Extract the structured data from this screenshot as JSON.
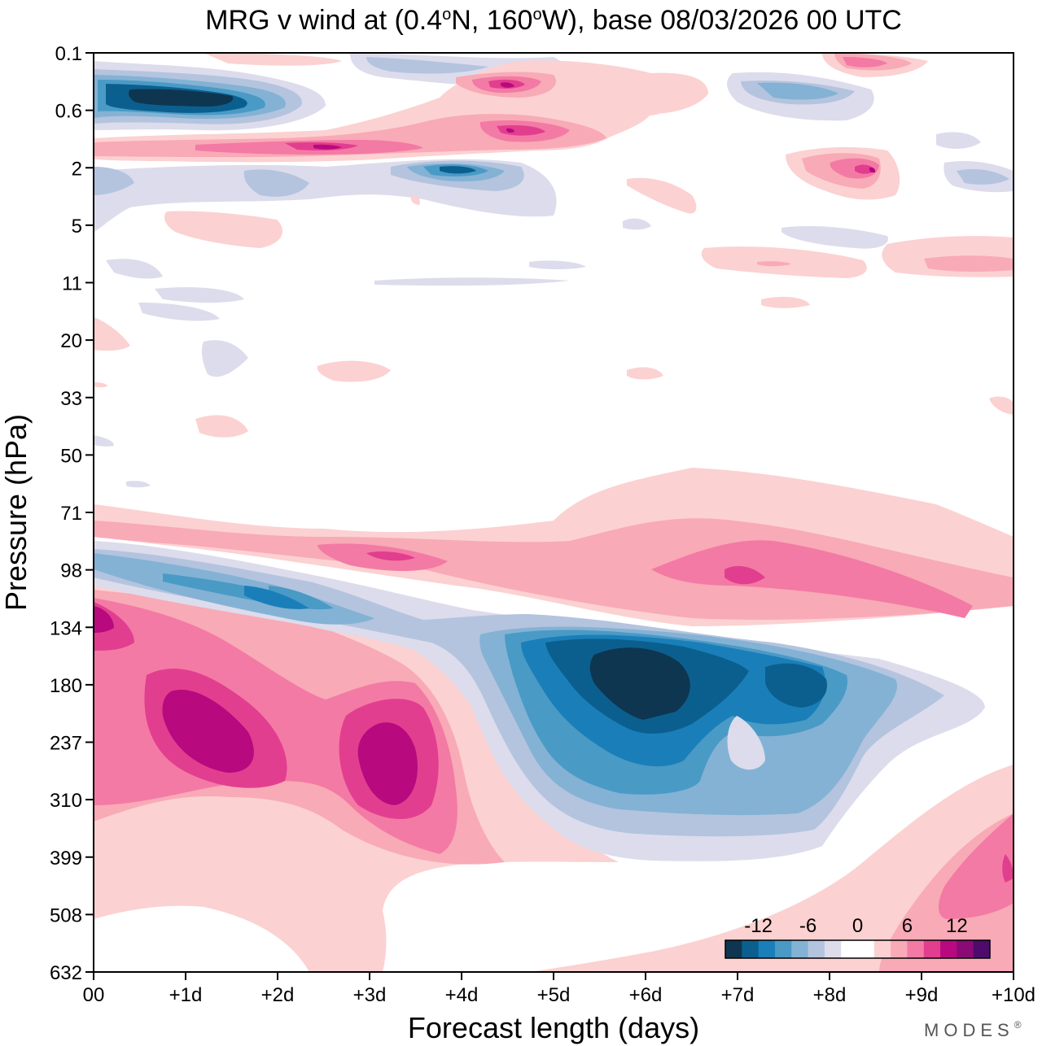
{
  "chart_data": {
    "type": "heatmap",
    "title": "MRG v wind at (0.4°N, 160°W),  base 08/03/2026  00 UTC",
    "title_parts": {
      "prefix": "MRG v wind at (0.4",
      "deg1": "o",
      "lat_suffix": "N, 160",
      "deg2": "o",
      "suffix": "W),  base 08/03/2026  00 UTC"
    },
    "xlabel": "Forecast length (days)",
    "ylabel": "Pressure (hPa)",
    "x_ticks": [
      "00",
      "+1d",
      "+2d",
      "+3d",
      "+4d",
      "+5d",
      "+6d",
      "+7d",
      "+8d",
      "+9d",
      "+10d"
    ],
    "x_range_days": [
      0,
      10
    ],
    "y_ticks": [
      "0.1",
      "0.6",
      "2",
      "5",
      "11",
      "20",
      "33",
      "50",
      "71",
      "98",
      "134",
      "180",
      "237",
      "310",
      "399",
      "508",
      "632"
    ],
    "y_range_hPa": [
      0.1,
      632
    ],
    "colorbar": {
      "tick_labels": [
        "-12",
        "-6",
        "0",
        "6",
        "12"
      ],
      "colors": [
        "#0e3650",
        "#0b5f8f",
        "#1a7fb8",
        "#4a9ac6",
        "#84b2d4",
        "#b4c4de",
        "#dcdcec",
        "#ffffff",
        "#ffffff",
        "#fcd1d1",
        "#f8aab6",
        "#f37aa4",
        "#e23e8f",
        "#b8097f",
        "#8a0b75",
        "#4e0b6c"
      ]
    },
    "features": [
      {
        "name": "mid-upper positive lobe 1",
        "center_day": 1.5,
        "center_pressure_hPa": 237,
        "peak_v": 12
      },
      {
        "name": "mid-upper positive lobe 2",
        "center_day": 3.3,
        "center_pressure_hPa": 237,
        "peak_v": 12
      },
      {
        "name": "upper negative core",
        "center_day": 6.0,
        "center_pressure_hPa": 180,
        "peak_v": -14
      },
      {
        "name": "secondary negative core",
        "center_day": 7.5,
        "center_pressure_hPa": 180,
        "peak_v": -10
      },
      {
        "name": "tropopause positive band",
        "center_day": 7.0,
        "center_pressure_hPa": 98,
        "peak_v": 10
      },
      {
        "name": "stratopause negative core",
        "center_day": 1.0,
        "center_pressure_hPa": 0.6,
        "peak_v": -14
      },
      {
        "name": "high stratosphere positive streak",
        "center_day": 2.5,
        "center_pressure_hPa": 1.2,
        "peak_v": 12
      }
    ]
  },
  "brand": {
    "name": "MODES",
    "mark": "®"
  },
  "colors": {
    "frame": "#000000",
    "background": "#ffffff"
  }
}
